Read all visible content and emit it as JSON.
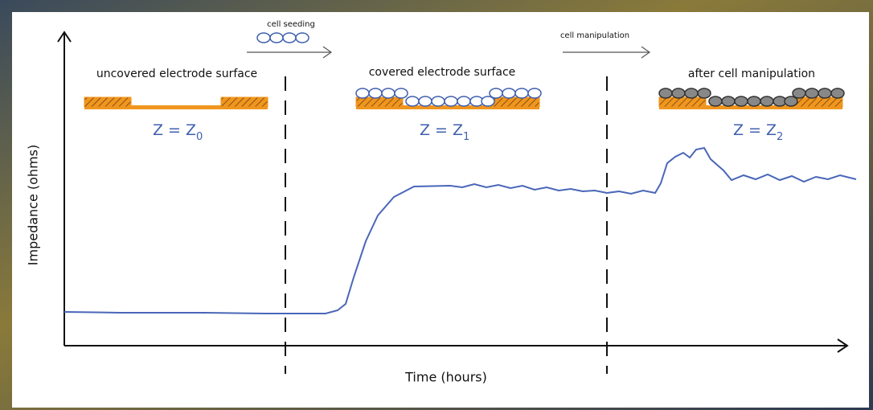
{
  "annotations": {
    "cell_seeding": "cell seeding",
    "cell_manipulation": "cell manipulation"
  },
  "phases": [
    {
      "label": "uncovered electrode surface",
      "equation": "Z = Z",
      "subscript": "0"
    },
    {
      "label": "covered electrode surface",
      "equation": "Z = Z",
      "subscript": "1"
    },
    {
      "label": "after cell manipulation",
      "equation": "Z = Z",
      "subscript": "2"
    }
  ],
  "axes": {
    "x_label": "Time (hours)",
    "y_label": "Impedance (ohms)"
  }
}
